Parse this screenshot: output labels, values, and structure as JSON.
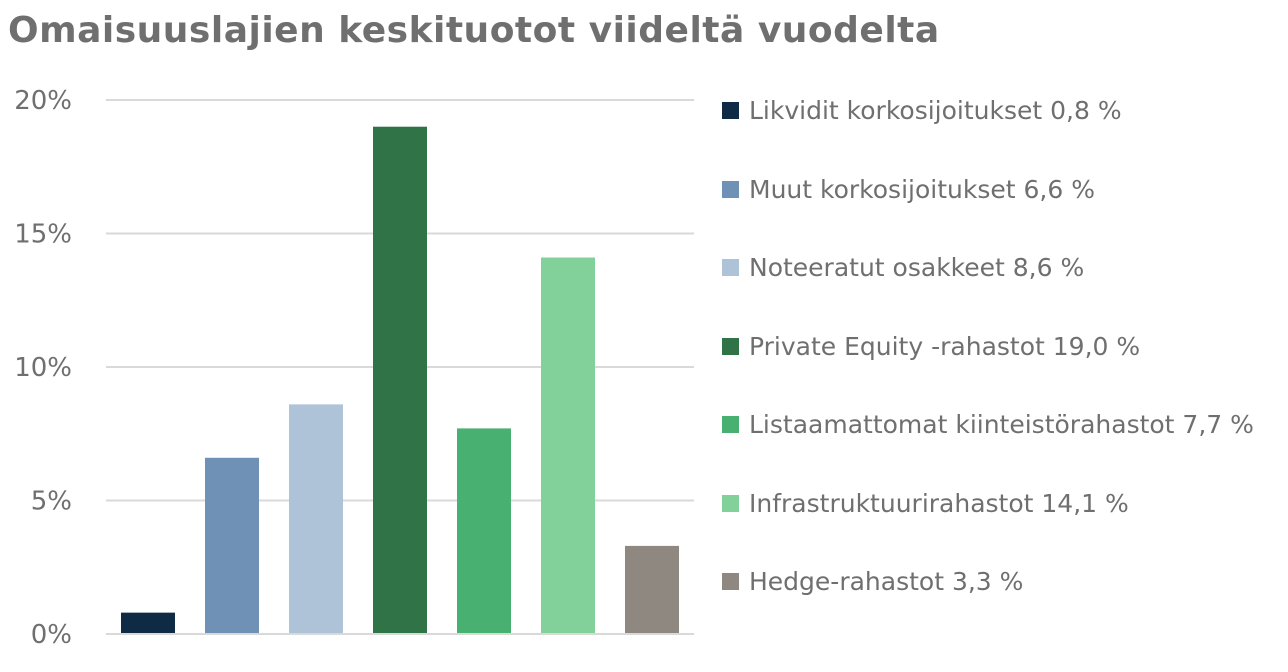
{
  "chart_data": {
    "type": "bar",
    "title": "Omaisuuslajien keskituotot viideltä vuodelta",
    "xlabel": "",
    "ylabel": "",
    "ylim": [
      0,
      20
    ],
    "yticks": [
      0,
      5,
      10,
      15,
      20
    ],
    "ytick_labels": [
      "0%",
      "5%",
      "10%",
      "15%",
      "20%"
    ],
    "grid": true,
    "legend_position": "right",
    "categories": [
      "Likvidit korkosijoitukset",
      "Muut korkosijoitukset",
      "Noteeratut osakkeet",
      "Private Equity -rahastot",
      "Listaamattomat kiinteistörahastot",
      "Infrastruktuurirahastot",
      "Hedge-rahastot"
    ],
    "values": [
      0.8,
      6.6,
      8.6,
      19.0,
      7.7,
      14.1,
      3.3
    ],
    "colors": [
      "#0e2a45",
      "#6f91b5",
      "#aec2d8",
      "#2f7347",
      "#48b070",
      "#82d09a",
      "#8f8880"
    ],
    "legend": [
      "Likvidit korkosijoitukset 0,8 %",
      "Muut korkosijoitukset 6,6 %",
      "Noteeratut osakkeet 8,6 %",
      "Private Equity -rahastot 19,0 %",
      "Listaamattomat kiinteistörahastot 7,7 %",
      "Infrastruktuurirahastot 14,1 %",
      "Hedge-rahastot 3,3 %"
    ]
  }
}
